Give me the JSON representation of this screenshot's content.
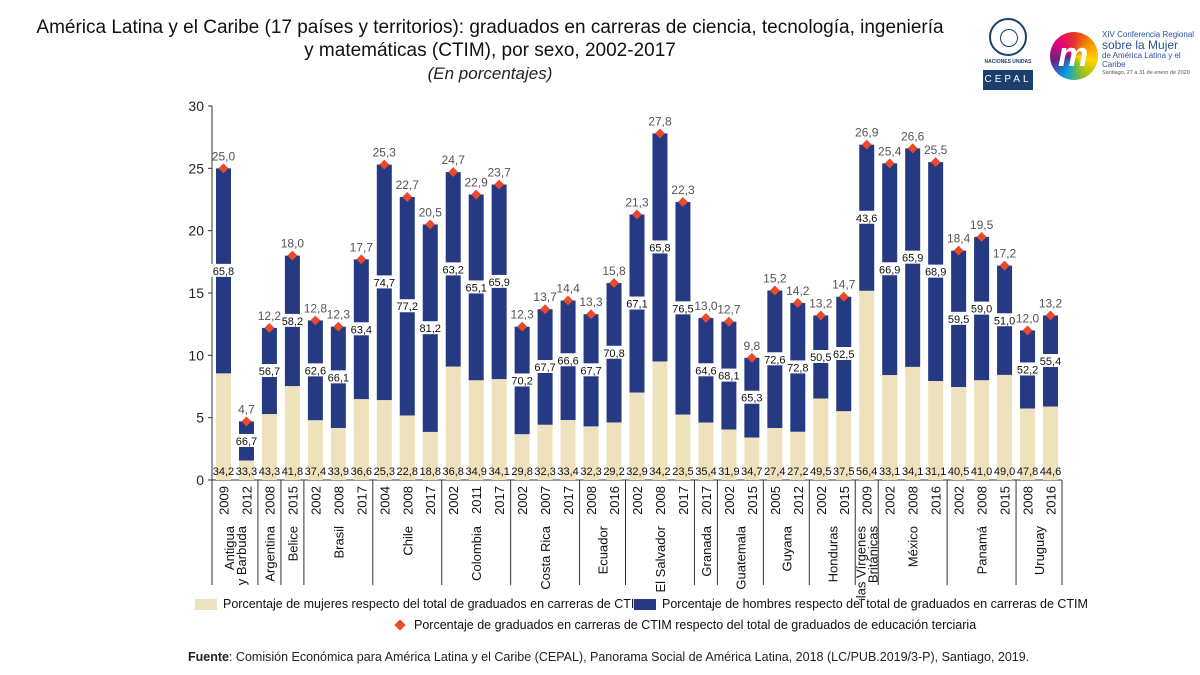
{
  "header": {
    "title_line1": "América Latina y el Caribe (17 países y territorios): graduados en carreras de ciencia, tecnología, ingeniería",
    "title_line2": "y matemáticas (CTIM), por sexo, 2002-2017",
    "subtitle": "(En porcentajes)",
    "logo_un": "NACIONES UNIDAS",
    "logo_cepal": "CEPAL",
    "conf_l1": "XIV Conferencia Regional",
    "conf_l2": "sobre la Mujer",
    "conf_l3": "de América Latina y el Caribe",
    "conf_l4": "Santiago, 27 a 31 de enero de 2020"
  },
  "colors": {
    "women": "#ede2bd",
    "men": "#263a84",
    "marker": "#e84a2a",
    "arrow": "#888888"
  },
  "chart_data": {
    "type": "bar",
    "stacked": true,
    "title": "América Latina y el Caribe (17 países y territorios): graduados en carreras de ciencia, tecnología, ingeniería y matemáticas (CTIM), por sexo, 2002-2017",
    "ylabel": "",
    "ylim": [
      0,
      30
    ],
    "yticks": [
      0,
      5,
      10,
      15,
      20,
      25,
      30
    ],
    "groups": [
      {
        "country": "Antigua y Barbuda",
        "bars": [
          {
            "year": "2009",
            "total": 25.0,
            "men": 65.8,
            "women": 34.2
          },
          {
            "year": "2012",
            "total": 4.7,
            "men": 66.7,
            "women": 33.3
          }
        ]
      },
      {
        "country": "Argentina",
        "bars": [
          {
            "year": "2008",
            "total": 12.2,
            "men": 56.7,
            "women": 43.3
          }
        ]
      },
      {
        "country": "Belice",
        "bars": [
          {
            "year": "2015",
            "total": 18.0,
            "men": 58.2,
            "women": 41.8
          }
        ]
      },
      {
        "country": "Brasil",
        "bars": [
          {
            "year": "2002",
            "total": 12.8,
            "men": 62.6,
            "women": 37.4
          },
          {
            "year": "2008",
            "total": 12.3,
            "men": 66.1,
            "women": 33.9
          },
          {
            "year": "2017",
            "total": 17.7,
            "men": 63.4,
            "women": 36.6
          }
        ]
      },
      {
        "country": "Chile",
        "bars": [
          {
            "year": "2004",
            "total": 25.3,
            "men": 74.7,
            "women": 25.3
          },
          {
            "year": "2008",
            "total": 22.7,
            "men": 77.2,
            "women": 22.8
          },
          {
            "year": "2017",
            "total": 20.5,
            "men": 81.2,
            "women": 18.8
          }
        ]
      },
      {
        "country": "Colombia",
        "bars": [
          {
            "year": "2002",
            "total": 24.7,
            "men": 63.2,
            "women": 36.8
          },
          {
            "year": "2011",
            "total": 22.9,
            "men": 65.1,
            "women": 34.9
          },
          {
            "year": "2017",
            "total": 23.7,
            "men": 65.9,
            "women": 34.1
          }
        ]
      },
      {
        "country": "Costa Rica",
        "bars": [
          {
            "year": "2002",
            "total": 12.3,
            "men": 70.2,
            "women": 29.8
          },
          {
            "year": "2007",
            "total": 13.7,
            "men": 67.7,
            "women": 32.3
          },
          {
            "year": "2017",
            "total": 14.4,
            "men": 66.6,
            "women": 33.4
          }
        ]
      },
      {
        "country": "Ecuador",
        "bars": [
          {
            "year": "2008",
            "total": 13.3,
            "men": 67.7,
            "women": 32.3
          },
          {
            "year": "2016",
            "total": 15.8,
            "men": 70.8,
            "women": 29.2
          }
        ]
      },
      {
        "country": "El Salvador",
        "bars": [
          {
            "year": "2002",
            "total": 21.3,
            "men": 67.1,
            "women": 32.9
          },
          {
            "year": "2008",
            "total": 27.8,
            "men": 65.8,
            "women": 34.2
          },
          {
            "year": "2017",
            "total": 22.3,
            "men": 76.5,
            "women": 23.5
          }
        ]
      },
      {
        "country": "Granada",
        "bars": [
          {
            "year": "2017",
            "total": 13.0,
            "men": 64.6,
            "women": 35.4
          }
        ]
      },
      {
        "country": "Guatemala",
        "bars": [
          {
            "year": "2002",
            "total": 12.7,
            "men": 68.1,
            "women": 31.9
          },
          {
            "year": "2015",
            "total": 9.8,
            "men": 65.3,
            "women": 34.7
          }
        ]
      },
      {
        "country": "Guyana",
        "bars": [
          {
            "year": "2005",
            "total": 15.2,
            "men": 72.6,
            "women": 27.4
          },
          {
            "year": "2012",
            "total": 14.2,
            "men": 72.8,
            "women": 27.2
          }
        ]
      },
      {
        "country": "Honduras",
        "bars": [
          {
            "year": "2002",
            "total": 13.2,
            "men": 50.5,
            "women": 49.5
          },
          {
            "year": "2015",
            "total": 14.7,
            "men": 62.5,
            "women": 37.5
          }
        ]
      },
      {
        "country": "Islas Vírgenes Británicas",
        "bars": [
          {
            "year": "2009",
            "total": 26.9,
            "men": 43.6,
            "women": 56.4
          }
        ]
      },
      {
        "country": "México",
        "bars": [
          {
            "year": "2002",
            "total": 25.4,
            "men": 66.9,
            "women": 33.1
          },
          {
            "year": "2008",
            "total": 26.6,
            "men": 65.9,
            "women": 34.1
          },
          {
            "year": "2016",
            "total": 25.5,
            "men": 68.9,
            "women": 31.1
          }
        ]
      },
      {
        "country": "Panamá",
        "bars": [
          {
            "year": "2002",
            "total": 18.4,
            "men": 59.5,
            "women": 40.5
          },
          {
            "year": "2008",
            "total": 19.5,
            "men": 59.0,
            "women": 41.0
          },
          {
            "year": "2015",
            "total": 17.2,
            "men": 51.0,
            "women": 49.0
          }
        ]
      },
      {
        "country": "Uruguay",
        "bars": [
          {
            "year": "2008",
            "total": 12.0,
            "men": 52.2,
            "women": 47.8
          },
          {
            "year": "2016",
            "total": 13.2,
            "men": 55.4,
            "women": 44.6
          }
        ]
      }
    ],
    "legend": {
      "women": "Porcentaje de mujeres respecto del total de graduados en carreras de CTIM",
      "men": "Porcentaje de hombres respecto del total de graduados en carreras de CTIM",
      "total": "Porcentaje de graduados en carreras de CTIM respecto del total de graduados de educación terciaria"
    },
    "legend_position": "bottom"
  },
  "source": {
    "label": "Fuente",
    "text": ": Comisión Económica para América Latina y el Caribe (CEPAL), Panorama Social de América Latina, 2018 (LC/PUB.2019/3-P), Santiago, 2019."
  }
}
